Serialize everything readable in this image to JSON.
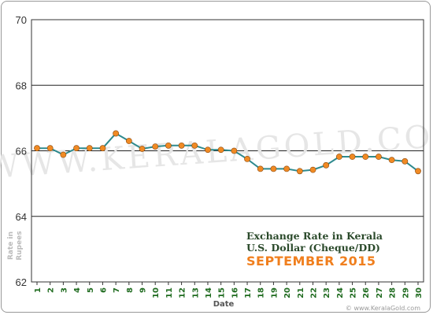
{
  "chart_data": {
    "type": "line",
    "title": "Exchange Rate in Kerala",
    "subtitle": "U.S. Dollar (Cheque/DD)",
    "period": "SEPTEMBER 2015",
    "xlabel": "Date",
    "ylabel_line1": "Rate in",
    "ylabel_line2": "Rupees",
    "ylim": [
      62,
      70
    ],
    "yticks": [
      "62",
      "64",
      "66",
      "68",
      "70"
    ],
    "ytick_values": [
      62,
      64,
      66,
      68,
      70
    ],
    "categories": [
      "1",
      "2",
      "3",
      "4",
      "5",
      "6",
      "7",
      "8",
      "9",
      "10",
      "11",
      "12",
      "13",
      "14",
      "15",
      "16",
      "17",
      "18",
      "19",
      "20",
      "21",
      "22",
      "23",
      "24",
      "25",
      "26",
      "27",
      "28",
      "29",
      "30"
    ],
    "series": [
      {
        "values": [
          66.08,
          66.08,
          65.88,
          66.08,
          66.08,
          66.08,
          66.53,
          66.3,
          66.06,
          66.13,
          66.16,
          66.16,
          66.16,
          66.03,
          66.03,
          66.0,
          65.75,
          65.45,
          65.45,
          65.45,
          65.38,
          65.42,
          65.56,
          65.82,
          65.82,
          65.82,
          65.82,
          65.72,
          65.68,
          65.38
        ]
      }
    ],
    "line_color": "#2e8a8e",
    "marker_color": "#f08a24",
    "grid": true,
    "legend": "bottom-right"
  },
  "watermark": "WWW.KERALAGOLD.COM",
  "footer_watermark": "© www.KeralaGold.com"
}
